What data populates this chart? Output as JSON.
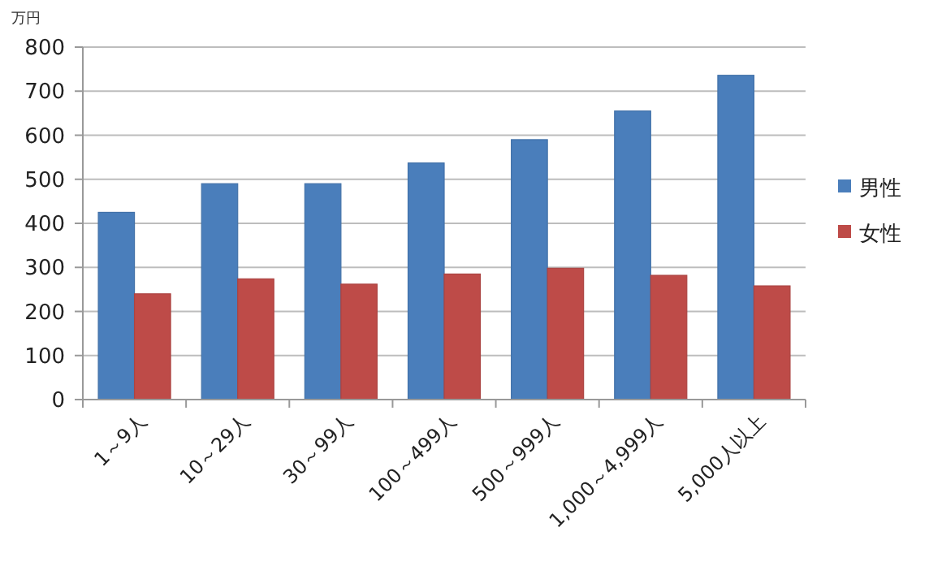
{
  "chart_data": {
    "type": "bar",
    "ylabel": "万円",
    "categories": [
      "1～9人",
      "10～29人",
      "30～99人",
      "100～499人",
      "500～999人",
      "1,000～4,999人",
      "5,000人以上"
    ],
    "series": [
      {
        "name": "男性",
        "color": "#4a7ebb",
        "values": [
          425,
          490,
          490,
          537,
          590,
          655,
          736
        ]
      },
      {
        "name": "女性",
        "color": "#be4b48",
        "values": [
          240,
          274,
          262,
          285,
          298,
          282,
          258
        ]
      }
    ],
    "ylim": [
      0,
      800
    ],
    "yticks": [
      0,
      100,
      200,
      300,
      400,
      500,
      600,
      700,
      800
    ],
    "grid": "y",
    "legend": "right"
  }
}
